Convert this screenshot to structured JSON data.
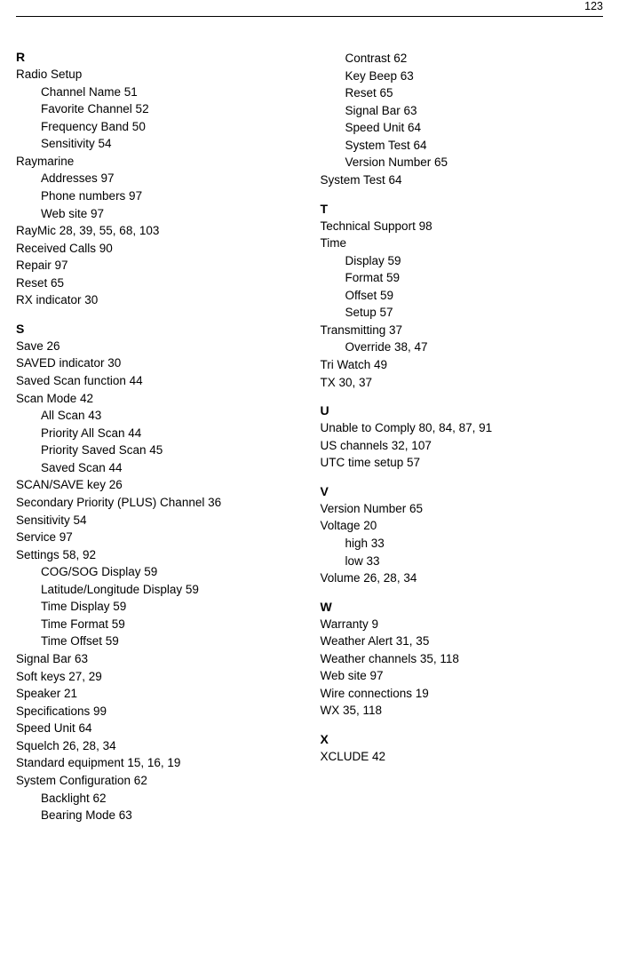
{
  "page_number": "123",
  "colors": {
    "text": "#000000",
    "background": "#ffffff",
    "rule": "#000000"
  },
  "typography": {
    "body_fontsize": 13.5,
    "heading_fontsize": 14,
    "heading_weight": 700,
    "line_height": 1.45
  },
  "index": {
    "left_column": [
      {
        "type": "heading",
        "letter": "R"
      },
      {
        "type": "entry",
        "level": 0,
        "text": "Radio Setup"
      },
      {
        "type": "entry",
        "level": 1,
        "text": "Channel Name 51"
      },
      {
        "type": "entry",
        "level": 1,
        "text": "Favorite Channel 52"
      },
      {
        "type": "entry",
        "level": 1,
        "text": "Frequency Band 50"
      },
      {
        "type": "entry",
        "level": 1,
        "text": "Sensitivity 54"
      },
      {
        "type": "entry",
        "level": 0,
        "text": "Raymarine"
      },
      {
        "type": "entry",
        "level": 1,
        "text": "Addresses 97"
      },
      {
        "type": "entry",
        "level": 1,
        "text": "Phone numbers 97"
      },
      {
        "type": "entry",
        "level": 1,
        "text": "Web site 97"
      },
      {
        "type": "entry",
        "level": 0,
        "text": "RayMic 28, 39, 55, 68, 103"
      },
      {
        "type": "entry",
        "level": 0,
        "text": "Received Calls 90"
      },
      {
        "type": "entry",
        "level": 0,
        "text": "Repair 97"
      },
      {
        "type": "entry",
        "level": 0,
        "text": "Reset 65"
      },
      {
        "type": "entry",
        "level": 0,
        "text": "RX indicator 30"
      },
      {
        "type": "heading",
        "letter": "S"
      },
      {
        "type": "entry",
        "level": 0,
        "text": "Save 26"
      },
      {
        "type": "entry",
        "level": 0,
        "text": "SAVED indicator 30"
      },
      {
        "type": "entry",
        "level": 0,
        "text": "Saved Scan function 44"
      },
      {
        "type": "entry",
        "level": 0,
        "text": "Scan Mode 42"
      },
      {
        "type": "entry",
        "level": 1,
        "text": "All Scan 43"
      },
      {
        "type": "entry",
        "level": 1,
        "text": "Priority All Scan 44"
      },
      {
        "type": "entry",
        "level": 1,
        "text": "Priority Saved Scan 45"
      },
      {
        "type": "entry",
        "level": 1,
        "text": "Saved Scan 44"
      },
      {
        "type": "entry",
        "level": 0,
        "text": "SCAN/SAVE key 26"
      },
      {
        "type": "entry",
        "level": 0,
        "text": "Secondary Priority (PLUS) Channel 36"
      },
      {
        "type": "entry",
        "level": 0,
        "text": "Sensitivity 54"
      },
      {
        "type": "entry",
        "level": 0,
        "text": "Service 97"
      },
      {
        "type": "entry",
        "level": 0,
        "text": "Settings 58, 92"
      },
      {
        "type": "entry",
        "level": 1,
        "text": "COG/SOG Display 59"
      },
      {
        "type": "entry",
        "level": 1,
        "text": "Latitude/Longitude Display 59"
      },
      {
        "type": "entry",
        "level": 1,
        "text": "Time Display 59"
      },
      {
        "type": "entry",
        "level": 1,
        "text": "Time Format 59"
      },
      {
        "type": "entry",
        "level": 1,
        "text": "Time Offset 59"
      },
      {
        "type": "entry",
        "level": 0,
        "text": "Signal Bar 63"
      },
      {
        "type": "entry",
        "level": 0,
        "text": "Soft keys 27, 29"
      },
      {
        "type": "entry",
        "level": 0,
        "text": "Speaker 21"
      },
      {
        "type": "entry",
        "level": 0,
        "text": "Specifications 99"
      },
      {
        "type": "entry",
        "level": 0,
        "text": "Speed Unit 64"
      },
      {
        "type": "entry",
        "level": 0,
        "text": "Squelch 26, 28, 34"
      },
      {
        "type": "entry",
        "level": 0,
        "text": "Standard equipment 15, 16, 19"
      },
      {
        "type": "entry",
        "level": 0,
        "text": "System Configuration 62"
      },
      {
        "type": "entry",
        "level": 1,
        "text": "Backlight 62"
      },
      {
        "type": "entry",
        "level": 1,
        "text": "Bearing Mode 63"
      }
    ],
    "right_column": [
      {
        "type": "entry",
        "level": 1,
        "text": "Contrast 62"
      },
      {
        "type": "entry",
        "level": 1,
        "text": "Key Beep 63"
      },
      {
        "type": "entry",
        "level": 1,
        "text": "Reset 65"
      },
      {
        "type": "entry",
        "level": 1,
        "text": "Signal Bar 63"
      },
      {
        "type": "entry",
        "level": 1,
        "text": "Speed Unit 64"
      },
      {
        "type": "entry",
        "level": 1,
        "text": "System Test 64"
      },
      {
        "type": "entry",
        "level": 1,
        "text": "Version Number 65"
      },
      {
        "type": "entry",
        "level": 0,
        "text": "System Test 64"
      },
      {
        "type": "heading",
        "letter": "T"
      },
      {
        "type": "entry",
        "level": 0,
        "text": "Technical Support 98"
      },
      {
        "type": "entry",
        "level": 0,
        "text": "Time"
      },
      {
        "type": "entry",
        "level": 1,
        "text": "Display 59"
      },
      {
        "type": "entry",
        "level": 1,
        "text": "Format 59"
      },
      {
        "type": "entry",
        "level": 1,
        "text": "Offset 59"
      },
      {
        "type": "entry",
        "level": 1,
        "text": "Setup 57"
      },
      {
        "type": "entry",
        "level": 0,
        "text": "Transmitting 37"
      },
      {
        "type": "entry",
        "level": 1,
        "text": "Override 38, 47"
      },
      {
        "type": "entry",
        "level": 0,
        "text": "Tri Watch 49"
      },
      {
        "type": "entry",
        "level": 0,
        "text": "TX 30, 37"
      },
      {
        "type": "heading",
        "letter": "U"
      },
      {
        "type": "entry",
        "level": 0,
        "text": "Unable to Comply 80, 84, 87, 91"
      },
      {
        "type": "entry",
        "level": 0,
        "text": "US channels 32, 107"
      },
      {
        "type": "entry",
        "level": 0,
        "text": "UTC time setup 57"
      },
      {
        "type": "heading",
        "letter": "V"
      },
      {
        "type": "entry",
        "level": 0,
        "text": "Version Number 65"
      },
      {
        "type": "entry",
        "level": 0,
        "text": "Voltage 20"
      },
      {
        "type": "entry",
        "level": 1,
        "text": "high 33"
      },
      {
        "type": "entry",
        "level": 1,
        "text": "low 33"
      },
      {
        "type": "entry",
        "level": 0,
        "text": "Volume 26, 28, 34"
      },
      {
        "type": "heading",
        "letter": "W"
      },
      {
        "type": "entry",
        "level": 0,
        "text": "Warranty 9"
      },
      {
        "type": "entry",
        "level": 0,
        "text": "Weather Alert 31, 35"
      },
      {
        "type": "entry",
        "level": 0,
        "text": "Weather channels 35, 118"
      },
      {
        "type": "entry",
        "level": 0,
        "text": "Web site 97"
      },
      {
        "type": "entry",
        "level": 0,
        "text": "Wire connections 19"
      },
      {
        "type": "entry",
        "level": 0,
        "text": "WX 35, 118"
      },
      {
        "type": "heading",
        "letter": "X"
      },
      {
        "type": "entry",
        "level": 0,
        "text": "XCLUDE 42"
      }
    ]
  }
}
